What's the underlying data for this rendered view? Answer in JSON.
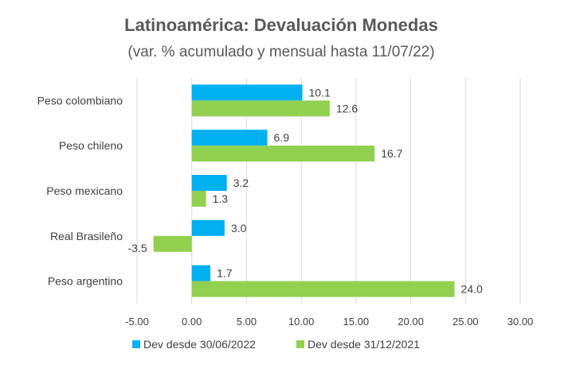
{
  "chart_data": {
    "type": "bar",
    "orientation": "horizontal",
    "title": "Latinoamérica: Devaluación Monedas",
    "subtitle": "(var. % acumulado y mensual hasta 11/07/22)",
    "categories": [
      "Peso colombiano",
      "Peso chileno",
      "Peso mexicano",
      "Real Brasileño",
      "Peso argentino"
    ],
    "series": [
      {
        "name": "Dev desde 30/06/2022",
        "color": "#00b0f0",
        "values": [
          10.1,
          6.9,
          3.2,
          3.0,
          1.7
        ],
        "labels": [
          "10.1",
          "6.9",
          "3.2",
          "3.0",
          "1.7"
        ]
      },
      {
        "name": "Dev desde 31/12/2021",
        "color": "#92d050",
        "values": [
          12.6,
          16.7,
          1.3,
          -3.5,
          24.0
        ],
        "labels": [
          "12.6",
          "16.7",
          "1.3",
          "-3.5",
          "24.0"
        ]
      }
    ],
    "xlim": [
      -5,
      30
    ],
    "xticks": [
      -5,
      0,
      5,
      10,
      15,
      20,
      25,
      30
    ],
    "xtick_labels": [
      "-5.00",
      "0.00",
      "5.00",
      "10.00",
      "15.00",
      "20.00",
      "25.00",
      "30.00"
    ],
    "grid": true,
    "legend_position": "bottom"
  }
}
